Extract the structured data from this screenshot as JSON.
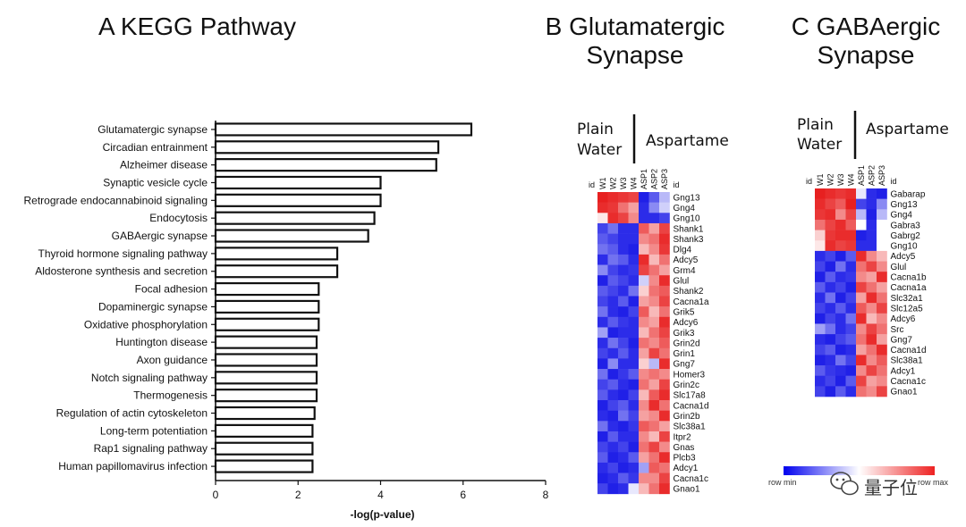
{
  "chart_data": [
    {
      "type": "bar",
      "orientation": "horizontal",
      "title": "A KEGG Pathway",
      "xlabel": "-log(p-value)",
      "ylabel": "",
      "xlim": [
        0,
        8
      ],
      "xticks": [
        0,
        2,
        4,
        6,
        8
      ],
      "categories": [
        "Glutamatergic synapse",
        "Circadian entrainment",
        "Alzheimer disease",
        "Synaptic vesicle cycle",
        "Retrograde endocannabinoid signaling",
        "Endocytosis",
        "GABAergic synapse",
        "Thyroid hormone signaling pathway",
        "Aldosterone synthesis and secretion",
        "Focal adhesion",
        "Dopaminergic synapse",
        "Oxidative phosphorylation",
        "Huntington disease",
        "Axon guidance",
        "Notch signaling pathway",
        "Thermogenesis",
        "Regulation of actin cytoskeleton",
        "Long-term potentiation",
        "Rap1 signaling pathway",
        "Human papillomavirus infection"
      ],
      "values": [
        6.2,
        5.4,
        5.35,
        4.0,
        4.0,
        3.85,
        3.7,
        2.95,
        2.95,
        2.5,
        2.5,
        2.5,
        2.45,
        2.45,
        2.45,
        2.45,
        2.4,
        2.35,
        2.35,
        2.35
      ]
    },
    {
      "type": "heatmap",
      "title": "B Glutamatergic Synapse",
      "group_labels": {
        "left": "Plain Water",
        "right": "Aspartame"
      },
      "id_label": "id",
      "columns": [
        "W1",
        "W2",
        "W3",
        "W4",
        "ASP1",
        "ASP2",
        "ASP3"
      ],
      "rows": [
        "Gng13",
        "Gng4",
        "Gng10",
        "Shank1",
        "Shank3",
        "Dlg4",
        "Adcy5",
        "Grm4",
        "Glul",
        "Shank2",
        "Cacna1a",
        "Grik5",
        "Adcy6",
        "Grik3",
        "Grin2d",
        "Grin1",
        "Gng7",
        "Homer3",
        "Grin2c",
        "Slc17a8",
        "Cacna1d",
        "Grin2b",
        "Slc38a1",
        "Itpr2",
        "Gnas",
        "Plcb3",
        "Adcy1",
        "Cacna1c",
        "Gnao1"
      ],
      "values": [
        [
          0.95,
          0.9,
          0.85,
          0.8,
          -0.95,
          -0.7,
          -0.3
        ],
        [
          0.9,
          0.85,
          0.6,
          0.4,
          -0.9,
          -0.5,
          -0.2
        ],
        [
          0.1,
          0.9,
          0.8,
          0.5,
          -0.9,
          -0.9,
          -0.8
        ],
        [
          -0.8,
          -0.6,
          -0.9,
          -0.9,
          0.7,
          0.4,
          0.8
        ],
        [
          -0.7,
          -0.8,
          -0.9,
          -0.9,
          0.5,
          0.6,
          0.9
        ],
        [
          -0.6,
          -0.7,
          -0.9,
          -0.95,
          0.3,
          0.5,
          0.85
        ],
        [
          -0.9,
          -0.6,
          -0.7,
          -0.9,
          0.9,
          0.3,
          0.6
        ],
        [
          -0.5,
          -0.8,
          -0.9,
          -0.85,
          0.8,
          0.6,
          0.4
        ],
        [
          -0.95,
          -0.7,
          -0.8,
          -0.9,
          -0.2,
          0.5,
          0.9
        ],
        [
          -0.7,
          -0.8,
          -0.9,
          -0.6,
          0.2,
          0.6,
          0.7
        ],
        [
          -0.8,
          -0.9,
          -0.7,
          -0.95,
          0.4,
          0.5,
          0.8
        ],
        [
          -0.6,
          -0.9,
          -0.95,
          -0.8,
          0.7,
          0.3,
          0.6
        ],
        [
          -0.9,
          -0.7,
          -0.85,
          -0.9,
          0.5,
          0.4,
          0.9
        ],
        [
          -0.4,
          -0.95,
          -0.9,
          -0.9,
          0.3,
          0.6,
          0.8
        ],
        [
          -0.9,
          -0.6,
          -0.8,
          -0.95,
          0.6,
          0.5,
          0.7
        ],
        [
          -0.8,
          -0.9,
          -0.7,
          -0.9,
          0.4,
          0.8,
          0.6
        ],
        [
          -0.95,
          -0.5,
          -0.9,
          -0.9,
          0.2,
          -0.3,
          0.9
        ],
        [
          -0.6,
          -0.95,
          -0.85,
          -0.7,
          0.5,
          0.6,
          0.5
        ],
        [
          -0.8,
          -0.7,
          -0.9,
          -0.95,
          0.6,
          0.4,
          0.8
        ],
        [
          -0.7,
          -0.9,
          -0.95,
          -0.8,
          0.3,
          0.7,
          0.9
        ],
        [
          -0.95,
          -0.8,
          -0.7,
          -0.9,
          0.5,
          0.9,
          0.6
        ],
        [
          -0.9,
          -0.95,
          -0.6,
          -0.8,
          0.4,
          0.5,
          0.9
        ],
        [
          -0.6,
          -0.9,
          -0.95,
          -0.85,
          0.7,
          0.6,
          0.4
        ],
        [
          -0.95,
          -0.7,
          -0.9,
          -0.9,
          0.5,
          0.3,
          0.8
        ],
        [
          -0.8,
          -0.9,
          -0.8,
          -0.95,
          0.6,
          0.8,
          0.5
        ],
        [
          -0.7,
          -0.95,
          -0.9,
          -0.7,
          0.4,
          0.6,
          0.9
        ],
        [
          -0.9,
          -0.8,
          -0.95,
          -0.9,
          -0.4,
          0.7,
          0.6
        ],
        [
          -0.95,
          -0.9,
          -0.7,
          -0.85,
          0.5,
          0.5,
          0.8
        ],
        [
          -0.8,
          -0.95,
          -0.9,
          -0.1,
          0.3,
          0.6,
          0.9
        ]
      ]
    },
    {
      "type": "heatmap",
      "title": "C GABAergic Synapse",
      "group_labels": {
        "left": "Plain Water",
        "right": "Aspartame"
      },
      "id_label": "id",
      "columns": [
        "W1",
        "W2",
        "W3",
        "W4",
        "ASP1",
        "ASP2",
        "ASP3"
      ],
      "rows": [
        "Gabarap",
        "Gng13",
        "Gng4",
        "Gabra3",
        "Gabrg2",
        "Gng10",
        "Adcy5",
        "Glul",
        "Cacna1b",
        "Cacna1a",
        "Slc32a1",
        "Slc12a5",
        "Adcy6",
        "Src",
        "Gng7",
        "Cacna1d",
        "Slc38a1",
        "Adcy1",
        "Cacna1c",
        "Gnao1"
      ],
      "values": [
        [
          0.95,
          0.9,
          0.85,
          0.9,
          -0.1,
          -0.9,
          -0.95
        ],
        [
          0.9,
          0.8,
          0.7,
          0.95,
          -0.8,
          -0.9,
          -0.5
        ],
        [
          0.85,
          0.9,
          0.5,
          0.8,
          -0.3,
          -0.95,
          -0.3
        ],
        [
          0.6,
          0.8,
          0.9,
          0.7,
          0.0,
          -0.9,
          0.0
        ],
        [
          0.2,
          0.85,
          0.9,
          0.9,
          -0.95,
          -0.9,
          0.0
        ],
        [
          0.1,
          0.9,
          0.8,
          0.85,
          -0.9,
          -0.9,
          0.0
        ],
        [
          -0.9,
          -0.8,
          -0.95,
          -0.7,
          0.9,
          0.5,
          0.3
        ],
        [
          -0.8,
          -0.95,
          -0.6,
          -0.9,
          0.6,
          0.8,
          0.5
        ],
        [
          -0.95,
          -0.7,
          -0.9,
          -0.85,
          0.5,
          0.4,
          0.9
        ],
        [
          -0.7,
          -0.9,
          -0.8,
          -0.95,
          0.8,
          0.6,
          0.4
        ],
        [
          -0.9,
          -0.6,
          -0.95,
          -0.8,
          0.4,
          0.9,
          0.6
        ],
        [
          -0.8,
          -0.9,
          -0.7,
          -0.9,
          0.7,
          0.5,
          0.8
        ],
        [
          -0.95,
          -0.8,
          -0.9,
          -0.6,
          0.9,
          0.3,
          0.5
        ],
        [
          -0.4,
          -0.6,
          -0.9,
          -0.8,
          0.5,
          0.8,
          0.6
        ],
        [
          -0.9,
          -0.95,
          -0.8,
          -0.7,
          0.6,
          0.9,
          0.4
        ],
        [
          -0.8,
          -0.7,
          -0.95,
          -0.9,
          0.4,
          0.6,
          0.9
        ],
        [
          -0.95,
          -0.9,
          -0.6,
          -0.8,
          0.9,
          0.5,
          0.7
        ],
        [
          -0.7,
          -0.85,
          -0.9,
          -0.95,
          0.5,
          0.8,
          0.6
        ],
        [
          -0.9,
          -0.8,
          -0.95,
          -0.7,
          0.8,
          0.4,
          0.5
        ],
        [
          -0.8,
          -0.95,
          -0.7,
          -0.9,
          0.6,
          0.5,
          0.8
        ]
      ]
    }
  ],
  "legend": {
    "min_label": "row min",
    "max_label": "row max",
    "min_color": "#0000ee",
    "max_color": "#ee2222"
  },
  "watermark": "量子位",
  "colors": {
    "low": "#1414e6",
    "mid": "#ffffff",
    "high": "#e61414",
    "bar_stroke": "#111111"
  }
}
